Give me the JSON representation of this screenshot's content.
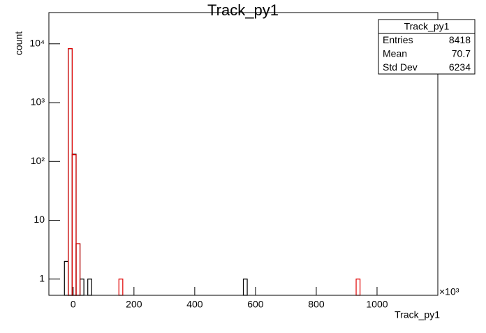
{
  "chart_data": {
    "type": "histogram",
    "title": "Track_py1",
    "x_label": "Track_py1",
    "y_label": "count",
    "x_exponent_label": "×10³",
    "bins": [
      -80,
      -67.2,
      -54.4,
      -41.6,
      -28.8,
      -16,
      -3.2,
      9.6,
      22.4,
      35.2,
      48,
      60.8,
      73.6,
      86.4,
      99.2,
      112,
      124.8,
      137.6,
      150.4,
      163.2,
      176,
      188.8,
      201.6,
      214.4,
      227.2,
      240,
      252.8,
      265.6,
      278.4,
      291.2,
      304,
      316.8,
      329.6,
      342.4,
      355.2,
      368,
      380.8,
      393.6,
      406.4,
      419.2,
      432,
      444.8,
      457.6,
      470.4,
      483.2,
      496,
      508.8,
      521.6,
      534.4,
      547.2,
      560,
      572.8,
      585.6,
      598.4,
      611.2,
      624,
      636.8,
      649.6,
      662.4,
      675.2,
      688,
      700.8,
      713.6,
      726.4,
      739.2,
      752,
      764.8,
      777.6,
      790.4,
      803.2,
      816,
      828.8,
      841.6,
      854.4,
      867.2,
      880,
      892.8,
      905.6,
      918.4,
      931.2,
      944,
      956.8,
      969.6,
      982.4,
      995.2,
      1008,
      1020.8,
      1033.6,
      1046.4,
      1059.2,
      1072,
      1084.8,
      1097.6,
      1110.4,
      1123.2,
      1136,
      1148.8,
      1161.6,
      1174.4,
      1187.2,
      1200
    ],
    "series": [
      {
        "color": "#000000",
        "values": [
          0,
          0,
          0,
          0,
          2,
          8276,
          133,
          4,
          1,
          0,
          1,
          0,
          0,
          0,
          0,
          0,
          0,
          0,
          0,
          0,
          0,
          0,
          0,
          0,
          0,
          0,
          0,
          0,
          0,
          0,
          0,
          0,
          0,
          0,
          0,
          0,
          0,
          0,
          0,
          0,
          0,
          0,
          0,
          0,
          0,
          0,
          0,
          0,
          0,
          0,
          1,
          0,
          0,
          0,
          0,
          0,
          0,
          0,
          0,
          0,
          0,
          0,
          0,
          0,
          0,
          0,
          0,
          0,
          0,
          0,
          0,
          0,
          0,
          0,
          0,
          0,
          0,
          0,
          0,
          0,
          0,
          0,
          0,
          0,
          0,
          0,
          0,
          0,
          0,
          0,
          0,
          0,
          0,
          0,
          0,
          0,
          0,
          0,
          0,
          0
        ]
      },
      {
        "color": "#e00000",
        "values": [
          0,
          0,
          0,
          0,
          0,
          8300,
          130,
          4,
          0,
          0,
          0,
          0,
          0,
          0,
          0,
          0,
          0,
          0,
          1,
          0,
          0,
          0,
          0,
          0,
          0,
          0,
          0,
          0,
          0,
          0,
          0,
          0,
          0,
          0,
          0,
          0,
          0,
          0,
          0,
          0,
          0,
          0,
          0,
          0,
          0,
          0,
          0,
          0,
          0,
          0,
          0,
          0,
          0,
          0,
          0,
          0,
          0,
          0,
          0,
          0,
          0,
          0,
          0,
          0,
          0,
          0,
          0,
          0,
          0,
          0,
          0,
          0,
          0,
          0,
          0,
          0,
          0,
          0,
          0,
          1,
          0,
          0,
          0,
          0,
          0,
          0,
          0,
          0,
          0,
          0,
          0,
          0,
          0,
          0,
          0,
          0,
          0,
          0,
          0,
          0
        ]
      }
    ],
    "xlim": [
      -80,
      1200
    ],
    "xticks": [
      0,
      200,
      400,
      600,
      800,
      1000
    ],
    "ylim": [
      0.53,
      34000
    ],
    "log_y": true,
    "yticks": [
      1,
      10,
      {
        "value": 100,
        "label": "10²"
      },
      {
        "value": 1000,
        "label": "10³"
      },
      {
        "value": 10000,
        "label": "10⁴"
      }
    ],
    "stats_box": {
      "title": "Track_py1",
      "rows": [
        [
          "Entries",
          "8418"
        ],
        [
          "Mean",
          "70.7"
        ],
        [
          "Std Dev",
          "6234"
        ]
      ]
    }
  }
}
